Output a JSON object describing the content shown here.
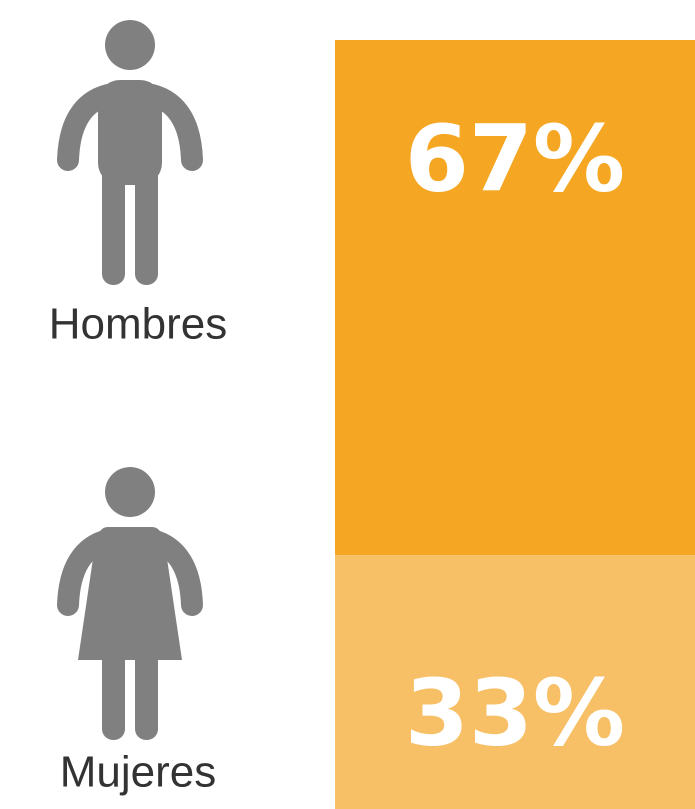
{
  "chart_data": {
    "type": "stacked_bar",
    "series": [
      {
        "name": "Hombres",
        "color": "#f5a623",
        "values": [
          67
        ],
        "value_labels": [
          "67%"
        ]
      },
      {
        "name": "Mujeres",
        "color": "#f7bf66",
        "values": [
          33
        ],
        "value_labels": [
          "33%"
        ]
      }
    ]
  }
}
